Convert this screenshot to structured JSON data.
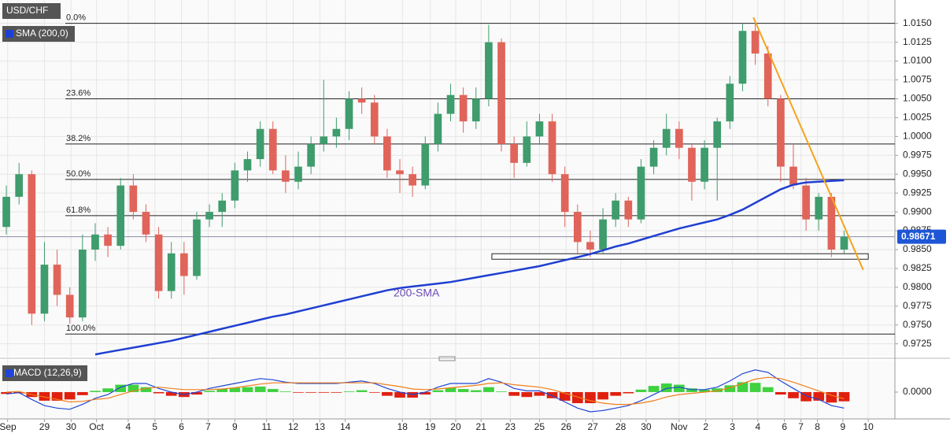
{
  "chart_data": [
    {
      "type": "candlestick",
      "title": "USD/CHF",
      "indicator_label": "SMA (200,0)",
      "up_color": "#3f9c6c",
      "down_color": "#e0645a",
      "grid": true,
      "xlim": [
        -0.5,
        70
      ],
      "ylim": [
        0.9709,
        1.0181
      ],
      "xticks": [
        {
          "value": 0.1,
          "label": "Sep"
        },
        {
          "value": 3.0,
          "label": "29"
        },
        {
          "value": 5.1,
          "label": "30"
        },
        {
          "value": 7.1,
          "label": "Oct"
        },
        {
          "value": 9.6,
          "label": "4"
        },
        {
          "value": 11.7,
          "label": "5"
        },
        {
          "value": 13.8,
          "label": "6"
        },
        {
          "value": 15.9,
          "label": "7"
        },
        {
          "value": 18.0,
          "label": "9"
        },
        {
          "value": 20.5,
          "label": "11"
        },
        {
          "value": 22.6,
          "label": "12"
        },
        {
          "value": 24.7,
          "label": "13"
        },
        {
          "value": 26.7,
          "label": "14"
        },
        {
          "value": 31.2,
          "label": "18"
        },
        {
          "value": 33.4,
          "label": "19"
        },
        {
          "value": 35.4,
          "label": "20"
        },
        {
          "value": 37.4,
          "label": "21"
        },
        {
          "value": 39.7,
          "label": "23"
        },
        {
          "value": 42.0,
          "label": "25"
        },
        {
          "value": 44.1,
          "label": "26"
        },
        {
          "value": 46.2,
          "label": "27"
        },
        {
          "value": 48.4,
          "label": "28"
        },
        {
          "value": 50.4,
          "label": "30"
        },
        {
          "value": 53.0,
          "label": "Nov"
        },
        {
          "value": 55.1,
          "label": "2"
        },
        {
          "value": 57.2,
          "label": "3"
        },
        {
          "value": 59.2,
          "label": "4"
        },
        {
          "value": 61.3,
          "label": "6"
        },
        {
          "value": 62.6,
          "label": "7"
        },
        {
          "value": 63.9,
          "label": "8"
        },
        {
          "value": 65.9,
          "label": "9"
        },
        {
          "value": 67.9,
          "label": "10"
        }
      ],
      "yticks": [
        {
          "value": 1.015,
          "label": "1.0150"
        },
        1.0125,
        {
          "value": 1.01,
          "label": "1.0100"
        },
        1.0075,
        {
          "value": 1.005,
          "label": "1.0050"
        },
        1.0025,
        {
          "value": 1.0,
          "label": "1.0000"
        },
        0.9975,
        {
          "value": 0.995,
          "label": "0.9950"
        },
        0.9925,
        {
          "value": 0.99,
          "label": "0.9900"
        },
        0.9875,
        {
          "value": 0.985,
          "label": "0.9850"
        },
        0.9825,
        {
          "value": 0.98,
          "label": "0.9800"
        },
        0.9775,
        {
          "value": 0.975,
          "label": "0.9750"
        },
        0.9725
      ],
      "open": [
        0.988,
        0.992,
        0.995,
        0.9765,
        0.983,
        0.979,
        0.976,
        0.985,
        0.987,
        0.9855,
        0.9935,
        0.99,
        0.987,
        0.9795,
        0.9845,
        0.9815,
        0.989,
        0.99,
        0.9915,
        0.9955,
        0.997,
        1.001,
        0.9955,
        0.994,
        0.996,
        0.999,
        1.0,
        1.001,
        1.005,
        1.0045,
        1.0,
        0.9955,
        0.995,
        0.9935,
        0.999,
        1.003,
        1.0055,
        1.002,
        1.005,
        1.0125,
        0.999,
        0.9965,
        1.0,
        1.002,
        0.995,
        0.99,
        0.986,
        0.985,
        0.989,
        0.9915,
        0.989,
        0.996,
        0.9985,
        1.001,
        0.9985,
        0.994,
        0.9985,
        1.002,
        1.007,
        1.014,
        1.011,
        1.005,
        0.996,
        0.9935,
        0.989,
        0.992,
        0.985
      ],
      "high": [
        0.9935,
        0.9965,
        0.9955,
        0.986,
        0.985,
        0.98,
        0.987,
        0.9885,
        0.988,
        0.9945,
        0.995,
        0.991,
        0.988,
        0.986,
        0.986,
        0.99,
        0.991,
        0.9925,
        0.9965,
        0.998,
        1.002,
        1.002,
        0.9975,
        0.998,
        1.0,
        1.0075,
        1.0025,
        1.006,
        1.0065,
        1.0055,
        1.001,
        0.997,
        0.996,
        1.0,
        1.0045,
        1.007,
        1.0065,
        1.0065,
        1.0148,
        1.013,
        1.0,
        1.002,
        1.003,
        1.003,
        0.996,
        0.991,
        0.9875,
        0.9905,
        0.9925,
        0.992,
        0.997,
        0.9995,
        1.003,
        1.002,
        0.999,
        0.9995,
        1.0025,
        1.008,
        1.015,
        1.015,
        1.012,
        1.0055,
        0.999,
        0.9945,
        0.9925,
        0.9925,
        0.9875
      ],
      "low": [
        0.987,
        0.991,
        0.975,
        0.9755,
        0.9775,
        0.9745,
        0.9755,
        0.9835,
        0.984,
        0.985,
        0.989,
        0.986,
        0.9785,
        0.9785,
        0.979,
        0.981,
        0.988,
        0.988,
        0.9905,
        0.994,
        0.996,
        0.995,
        0.9925,
        0.993,
        0.995,
        0.998,
        0.9985,
        0.9995,
        1.003,
        0.999,
        0.9945,
        0.9925,
        0.992,
        0.993,
        0.998,
        1.002,
        1.0005,
        1.001,
        1.004,
        0.998,
        0.9945,
        0.996,
        0.999,
        0.994,
        0.988,
        0.9845,
        0.984,
        0.9845,
        0.988,
        0.988,
        0.9885,
        0.995,
        0.9975,
        0.997,
        0.9915,
        0.993,
        0.9915,
        1.001,
        1.006,
        1.0095,
        1.004,
        0.994,
        0.993,
        0.9875,
        0.9875,
        0.984,
        0.9845
      ],
      "close": [
        0.992,
        0.995,
        0.9765,
        0.983,
        0.979,
        0.976,
        0.985,
        0.987,
        0.9855,
        0.9935,
        0.99,
        0.987,
        0.9795,
        0.9845,
        0.9815,
        0.989,
        0.99,
        0.9915,
        0.9955,
        0.997,
        1.001,
        0.9955,
        0.994,
        0.996,
        0.999,
        1.0,
        1.001,
        1.005,
        1.0045,
        1.0,
        0.9955,
        0.995,
        0.9935,
        0.999,
        1.003,
        1.0055,
        1.002,
        1.005,
        1.0125,
        0.999,
        0.9965,
        1.0,
        1.002,
        0.995,
        0.99,
        0.986,
        0.985,
        0.989,
        0.9915,
        0.989,
        0.996,
        0.9985,
        1.001,
        0.9985,
        0.994,
        0.9985,
        1.002,
        1.007,
        1.014,
        1.011,
        1.005,
        0.996,
        0.9935,
        0.989,
        0.992,
        0.985,
        0.9867
      ],
      "series": [
        {
          "name": "200-SMA",
          "color": "#1f3fd1",
          "values": [
            null,
            null,
            null,
            null,
            null,
            null,
            null,
            0.9711,
            0.9714,
            0.9717,
            0.972,
            0.9723,
            0.9726,
            0.9729,
            0.9733,
            0.9737,
            0.9741,
            0.9745,
            0.9749,
            0.9753,
            0.9757,
            0.9761,
            0.9764,
            0.9768,
            0.9772,
            0.9776,
            0.978,
            0.9784,
            0.9788,
            0.9792,
            0.9796,
            0.9799,
            0.9801,
            0.9803,
            0.9805,
            0.9807,
            0.981,
            0.9813,
            0.9816,
            0.9819,
            0.9822,
            0.9825,
            0.9828,
            0.9832,
            0.9836,
            0.984,
            0.9844,
            0.9849,
            0.9854,
            0.9858,
            0.9863,
            0.9868,
            0.9873,
            0.9878,
            0.9882,
            0.9886,
            0.989,
            0.9896,
            0.9903,
            0.9912,
            0.9921,
            0.993,
            0.9936,
            0.9939,
            0.994,
            0.9941,
            0.9942
          ]
        }
      ],
      "fib_levels": [
        {
          "label": "0.0%",
          "value": 1.015
        },
        {
          "label": "23.6%",
          "value": 1.005
        },
        {
          "label": "38.2%",
          "value": 0.999
        },
        {
          "label": "50.0%",
          "value": 0.9943
        },
        {
          "label": "61.8%",
          "value": 0.9895
        },
        {
          "label": "100.0%",
          "value": 0.9738
        }
      ],
      "trend_line": {
        "x": [
          58.85,
          67.5
        ],
        "y": [
          1.0158,
          0.9823
        ],
        "color": "#f7a21b"
      },
      "support_zone": {
        "x": [
          38.25,
          67.9
        ],
        "y": [
          0.98372,
          0.98445
        ]
      },
      "current_price": 0.98671
    },
    {
      "type": "macd",
      "title": "MACD (12,26,9)",
      "xlim": [
        -0.5,
        70
      ],
      "ylim": [
        -0.0041,
        0.0046
      ],
      "yticks": [
        {
          "value": 0,
          "label": "0.0000"
        }
      ],
      "histogram": {
        "up_color": "#3fd13f",
        "down_color": "#e0200f",
        "values": [
          -0.0003,
          -0.0002,
          -0.0008,
          -0.0014,
          -0.0014,
          -0.0012,
          -0.0005,
          0.0002,
          0.0006,
          0.0012,
          0.0012,
          0.0008,
          -0.0002,
          -0.0006,
          -0.0008,
          -0.0004,
          0.0002,
          0.0005,
          0.0007,
          0.0008,
          0.0009,
          0.0005,
          0.0001,
          -0.0001,
          -0.0001,
          -0.0001,
          -0.0001,
          0.0001,
          0.0003,
          -0.0001,
          -0.0006,
          -0.0009,
          -0.0009,
          -0.0004,
          0.0003,
          0.0007,
          0.0005,
          0.0003,
          0.0008,
          0.0001,
          -0.0006,
          -0.0008,
          -0.0006,
          -0.001,
          -0.0014,
          -0.0018,
          -0.0018,
          -0.0012,
          -0.0006,
          -0.0002,
          0.0004,
          0.001,
          0.0014,
          0.0012,
          0.0006,
          0.0004,
          0.0006,
          0.0011,
          0.0016,
          0.0015,
          0.0008,
          -0.0004,
          -0.001,
          -0.0015,
          -0.0014,
          -0.0017,
          -0.0015
        ]
      },
      "series": [
        {
          "color": "#2046d6",
          "values": [
            -0.0003,
            -0.0001,
            -0.0012,
            -0.0022,
            -0.0026,
            -0.0028,
            -0.002,
            -0.001,
            -0.0004,
            0.0008,
            0.0014,
            0.0014,
            0.0006,
            0,
            -0.0004,
            0,
            0.0006,
            0.001,
            0.0014,
            0.0018,
            0.0022,
            0.002,
            0.0016,
            0.0014,
            0.0014,
            0.0014,
            0.0014,
            0.0016,
            0.0018,
            0.0014,
            0.0006,
            0,
            -0.0004,
            0,
            0.0008,
            0.0014,
            0.0014,
            0.0014,
            0.0022,
            0.0016,
            0.0006,
            0.0002,
            0.0002,
            -0.0006,
            -0.0016,
            -0.0026,
            -0.0032,
            -0.003,
            -0.0026,
            -0.0022,
            -0.0014,
            -0.0004,
            0.0006,
            0.0008,
            0.0004,
            0.0004,
            0.0008,
            0.0018,
            0.003,
            0.0036,
            0.0032,
            0.0018,
            0.0006,
            -0.0006,
            -0.0012,
            -0.0022,
            -0.0026
          ]
        },
        {
          "color": "#f07f1a",
          "values": [
            0,
            0.0001,
            -0.0004,
            -0.0008,
            -0.0012,
            -0.0016,
            -0.0015,
            -0.0012,
            -0.001,
            -0.0004,
            0.0002,
            0.0006,
            0.0008,
            0.0006,
            0.0004,
            0.0004,
            0.0004,
            0.0005,
            0.0007,
            0.001,
            0.0013,
            0.0015,
            0.0015,
            0.0015,
            0.0015,
            0.0015,
            0.0015,
            0.0015,
            0.0015,
            0.0015,
            0.0012,
            0.0009,
            0.0005,
            0.0004,
            0.0005,
            0.0007,
            0.0009,
            0.0011,
            0.0014,
            0.0015,
            0.0012,
            0.001,
            0.0008,
            0.0004,
            -0.0002,
            -0.0008,
            -0.0014,
            -0.0018,
            -0.002,
            -0.002,
            -0.0018,
            -0.0014,
            -0.0008,
            -0.0004,
            -0.0002,
            0,
            0.0002,
            0.0007,
            0.0014,
            0.0021,
            0.0024,
            0.0022,
            0.0016,
            0.0009,
            0.0002,
            -0.0005,
            -0.0011
          ]
        }
      ]
    }
  ]
}
